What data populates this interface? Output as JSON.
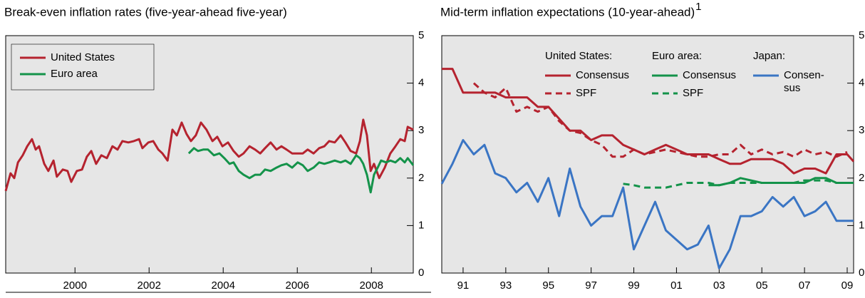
{
  "chart_data": [
    {
      "type": "line",
      "title": "Break-even inflation rates (five-year-ahead five-year)",
      "xlim": [
        1998.63,
        2009.63
      ],
      "ylim": [
        0,
        5
      ],
      "yticks": [
        0,
        1,
        2,
        3,
        4,
        5
      ],
      "xticks": [
        {
          "value": 2000.5,
          "label": "2000"
        },
        {
          "value": 2002.5,
          "label": "2002"
        },
        {
          "value": 2004.5,
          "label": "2004"
        },
        {
          "value": 2006.5,
          "label": "2006"
        },
        {
          "value": 2008.5,
          "label": "2008"
        }
      ],
      "legend": "top-left",
      "series": [
        {
          "name": "United States",
          "color": "#b5232f",
          "style": "solid",
          "x": [
            1998.63,
            1998.76,
            1998.86,
            1998.96,
            1999.09,
            1999.21,
            1999.34,
            1999.44,
            1999.53,
            1999.67,
            1999.78,
            1999.92,
            2000.01,
            2000.17,
            2000.3,
            2000.4,
            2000.55,
            2000.69,
            2000.82,
            2000.94,
            2001.07,
            2001.21,
            2001.36,
            2001.51,
            2001.65,
            2001.78,
            2001.94,
            2002.09,
            2002.23,
            2002.32,
            2002.48,
            2002.61,
            2002.75,
            2002.86,
            2003.0,
            2003.13,
            2003.25,
            2003.38,
            2003.51,
            2003.63,
            2003.76,
            2003.9,
            2004.05,
            2004.21,
            2004.34,
            2004.48,
            2004.63,
            2004.78,
            2004.92,
            2005.05,
            2005.21,
            2005.36,
            2005.5,
            2005.63,
            2005.78,
            2005.94,
            2006.07,
            2006.21,
            2006.36,
            2006.51,
            2006.65,
            2006.78,
            2006.94,
            2007.09,
            2007.23,
            2007.36,
            2007.51,
            2007.67,
            2007.8,
            2007.94,
            2008.09,
            2008.19,
            2008.28,
            2008.38,
            2008.48,
            2008.57,
            2008.71,
            2008.86,
            2009.01,
            2009.15,
            2009.28,
            2009.4,
            2009.48,
            2009.63
          ],
          "values": [
            1.73,
            2.1,
            2.0,
            2.33,
            2.48,
            2.67,
            2.82,
            2.6,
            2.67,
            2.3,
            2.15,
            2.37,
            2.03,
            2.18,
            2.15,
            1.92,
            2.15,
            2.18,
            2.45,
            2.57,
            2.3,
            2.48,
            2.42,
            2.67,
            2.6,
            2.78,
            2.75,
            2.78,
            2.82,
            2.63,
            2.75,
            2.78,
            2.6,
            2.52,
            2.37,
            3.02,
            2.9,
            3.17,
            2.93,
            2.78,
            2.9,
            3.17,
            3.02,
            2.78,
            2.87,
            2.67,
            2.75,
            2.57,
            2.45,
            2.52,
            2.67,
            2.6,
            2.52,
            2.63,
            2.75,
            2.6,
            2.67,
            2.6,
            2.52,
            2.52,
            2.52,
            2.6,
            2.52,
            2.63,
            2.67,
            2.78,
            2.75,
            2.9,
            2.75,
            2.57,
            2.52,
            2.78,
            3.23,
            2.9,
            2.15,
            2.3,
            2.0,
            2.22,
            2.52,
            2.67,
            2.82,
            2.78,
            3.08,
            3.02
          ]
        },
        {
          "name": "Euro area",
          "color": "#14934a",
          "style": "solid",
          "x": [
            2003.57,
            2003.71,
            2003.82,
            2003.96,
            2004.09,
            2004.25,
            2004.4,
            2004.53,
            2004.67,
            2004.78,
            2004.92,
            2005.05,
            2005.21,
            2005.36,
            2005.5,
            2005.63,
            2005.78,
            2005.94,
            2006.07,
            2006.21,
            2006.36,
            2006.51,
            2006.65,
            2006.78,
            2006.94,
            2007.09,
            2007.23,
            2007.36,
            2007.51,
            2007.67,
            2007.8,
            2007.94,
            2008.09,
            2008.19,
            2008.28,
            2008.38,
            2008.48,
            2008.57,
            2008.67,
            2008.76,
            2008.9,
            2009.01,
            2009.15,
            2009.28,
            2009.4,
            2009.48,
            2009.63
          ],
          "values": [
            2.52,
            2.63,
            2.57,
            2.6,
            2.6,
            2.48,
            2.52,
            2.42,
            2.3,
            2.33,
            2.15,
            2.07,
            2.0,
            2.07,
            2.07,
            2.18,
            2.15,
            2.22,
            2.27,
            2.3,
            2.22,
            2.33,
            2.27,
            2.15,
            2.22,
            2.33,
            2.3,
            2.33,
            2.37,
            2.33,
            2.37,
            2.3,
            2.48,
            2.42,
            2.3,
            2.07,
            1.7,
            2.07,
            2.22,
            2.37,
            2.33,
            2.37,
            2.33,
            2.42,
            2.33,
            2.42,
            2.27
          ]
        }
      ]
    },
    {
      "type": "line",
      "title": "Mid-term inflation expectations (10-year-ahead)",
      "title_note": "1",
      "xlim": [
        1990.5,
        2009.8
      ],
      "ylim": [
        0,
        5
      ],
      "yticks": [
        0,
        1,
        2,
        3,
        4,
        5
      ],
      "xticks": [
        {
          "value": 1991.5,
          "label": "91"
        },
        {
          "value": 1993.5,
          "label": "93"
        },
        {
          "value": 1995.5,
          "label": "95"
        },
        {
          "value": 1997.5,
          "label": "97"
        },
        {
          "value": 1999.5,
          "label": "99"
        },
        {
          "value": 2001.5,
          "label": "01"
        },
        {
          "value": 2003.5,
          "label": "03"
        },
        {
          "value": 2005.5,
          "label": "05"
        },
        {
          "value": 2007.5,
          "label": "07"
        },
        {
          "value": 2009.5,
          "label": "09"
        }
      ],
      "legend": "top",
      "series_groups": [
        {
          "name": "United States:",
          "series": [
            {
              "name": "Consensus",
              "color": "#b5232f",
              "style": "solid",
              "x": [
                1990.5,
                1991,
                1991.5,
                1992,
                1992.5,
                1993,
                1993.5,
                1994,
                1994.5,
                1995,
                1995.5,
                1996,
                1996.5,
                1997,
                1997.5,
                1998,
                1998.5,
                1999,
                1999.5,
                2000,
                2000.5,
                2001,
                2001.5,
                2002,
                2002.5,
                2003,
                2003.5,
                2004,
                2004.5,
                2005,
                2005.5,
                2006,
                2006.5,
                2007,
                2007.5,
                2008,
                2008.5,
                2009,
                2009.5,
                2009.8
              ],
              "values": [
                4.3,
                4.3,
                3.8,
                3.8,
                3.8,
                3.8,
                3.7,
                3.7,
                3.7,
                3.5,
                3.5,
                3.25,
                3.0,
                3.0,
                2.8,
                2.9,
                2.9,
                2.7,
                2.6,
                2.5,
                2.6,
                2.7,
                2.6,
                2.5,
                2.5,
                2.5,
                2.4,
                2.3,
                2.3,
                2.4,
                2.4,
                2.4,
                2.3,
                2.1,
                2.2,
                2.2,
                2.1,
                2.5,
                2.5,
                2.35
              ]
            },
            {
              "name": "SPF",
              "color": "#b5232f",
              "style": "dashed",
              "x": [
                1992,
                1992.5,
                1993,
                1993.5,
                1994,
                1994.5,
                1995,
                1995.5,
                1996,
                1996.5,
                1997,
                1997.5,
                1998,
                1998.5,
                1999,
                1999.5,
                2000,
                2000.5,
                2001,
                2001.5,
                2002,
                2002.5,
                2003,
                2003.5,
                2004,
                2004.5,
                2005,
                2005.5,
                2006,
                2006.5,
                2007,
                2007.5,
                2008,
                2008.5,
                2009,
                2009.5
              ],
              "values": [
                4.0,
                3.8,
                3.7,
                3.9,
                3.4,
                3.5,
                3.4,
                3.5,
                3.2,
                3.0,
                2.95,
                2.8,
                2.7,
                2.45,
                2.45,
                2.6,
                2.5,
                2.55,
                2.6,
                2.55,
                2.5,
                2.45,
                2.45,
                2.5,
                2.5,
                2.7,
                2.5,
                2.6,
                2.5,
                2.55,
                2.45,
                2.6,
                2.5,
                2.55,
                2.45,
                2.55
              ]
            }
          ]
        },
        {
          "name": "Euro area:",
          "series": [
            {
              "name": "Consensus",
              "color": "#14934a",
              "style": "solid",
              "x": [
                2003,
                2003.5,
                2004,
                2004.5,
                2005,
                2005.5,
                2006,
                2006.5,
                2007,
                2007.5,
                2008,
                2008.5,
                2009,
                2009.5,
                2009.8
              ],
              "values": [
                1.85,
                1.85,
                1.9,
                2.0,
                1.95,
                1.9,
                1.9,
                1.9,
                1.9,
                1.9,
                2.0,
                2.0,
                1.9,
                1.9,
                1.9
              ]
            },
            {
              "name": "SPF",
              "color": "#14934a",
              "style": "dashed",
              "x": [
                1999,
                1999.5,
                2000,
                2000.5,
                2001,
                2001.5,
                2002,
                2002.5,
                2003,
                2003.5,
                2004,
                2004.5,
                2005,
                2005.5,
                2006,
                2006.5,
                2007,
                2007.5,
                2008,
                2008.5,
                2009,
                2009.5
              ],
              "values": [
                1.88,
                1.85,
                1.8,
                1.8,
                1.8,
                1.85,
                1.9,
                1.9,
                1.9,
                1.85,
                1.9,
                1.9,
                1.9,
                1.9,
                1.9,
                1.9,
                1.9,
                1.95,
                1.95,
                1.95,
                1.9,
                1.9
              ]
            }
          ]
        },
        {
          "name": "Japan:",
          "series": [
            {
              "name": "Consen-\nsus",
              "color": "#3a75c4",
              "style": "solid",
              "x": [
                1990.5,
                1991,
                1991.5,
                1992,
                1992.5,
                1993,
                1993.5,
                1994,
                1994.5,
                1995,
                1995.5,
                1996,
                1996.5,
                1997,
                1997.5,
                1998,
                1998.5,
                1999,
                1999.5,
                2000,
                2000.5,
                2001,
                2001.5,
                2002,
                2002.5,
                2003,
                2003.5,
                2004,
                2004.5,
                2005,
                2005.5,
                2006,
                2006.5,
                2007,
                2007.5,
                2008,
                2008.5,
                2009,
                2009.5,
                2009.8
              ],
              "values": [
                1.88,
                2.3,
                2.8,
                2.5,
                2.7,
                2.1,
                2.0,
                1.7,
                1.9,
                1.5,
                2.0,
                1.2,
                2.2,
                1.4,
                1.0,
                1.2,
                1.2,
                1.8,
                0.5,
                1.0,
                1.5,
                0.9,
                0.7,
                0.5,
                0.6,
                1.0,
                0.1,
                0.5,
                1.2,
                1.2,
                1.3,
                1.6,
                1.4,
                1.6,
                1.2,
                1.3,
                1.5,
                1.1,
                1.1,
                1.1
              ]
            }
          ]
        }
      ]
    }
  ]
}
